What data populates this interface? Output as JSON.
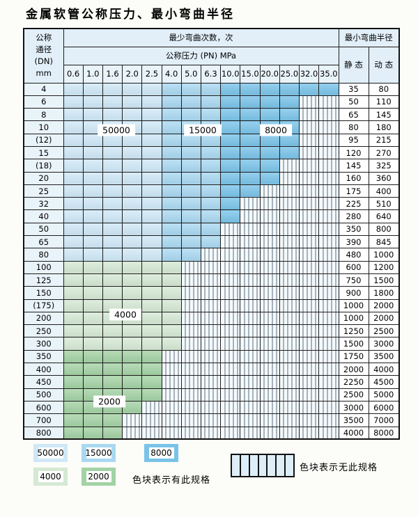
{
  "title": "金属软管公称压力、最小弯曲半径",
  "table": {
    "header": {
      "dn_lines": [
        "公称",
        "通径",
        "(DN)",
        "mm"
      ],
      "bend_times": "最少弯曲次数，次",
      "pressure": "公称压力 (PN) MPa",
      "pressure_values": [
        "0.6",
        "1.0",
        "1.6",
        "2.0",
        "2.5",
        "4.0",
        "5.0",
        "6.3",
        "10.0",
        "15.0",
        "20.0",
        "25.0",
        "32.0",
        "35.0"
      ],
      "radius": "最小弯曲半径",
      "static_label": "静 态",
      "dynamic_label": "动 态"
    },
    "rows": [
      {
        "dn": "4",
        "zone": "blue",
        "max_col": 14,
        "static": "35",
        "dynamic": "80"
      },
      {
        "dn": "6",
        "zone": "blue",
        "max_col": 12,
        "static": "50",
        "dynamic": "110"
      },
      {
        "dn": "8",
        "zone": "blue",
        "max_col": 12,
        "static": "65",
        "dynamic": "145"
      },
      {
        "dn": "10",
        "zone": "blue",
        "max_col": 12,
        "static": "80",
        "dynamic": "180"
      },
      {
        "dn": "(12)",
        "zone": "blue",
        "max_col": 12,
        "static": "95",
        "dynamic": "215"
      },
      {
        "dn": "15",
        "zone": "blue",
        "max_col": 12,
        "static": "120",
        "dynamic": "270"
      },
      {
        "dn": "(18)",
        "zone": "blue",
        "max_col": 11,
        "static": "145",
        "dynamic": "325"
      },
      {
        "dn": "20",
        "zone": "blue",
        "max_col": 11,
        "static": "160",
        "dynamic": "360"
      },
      {
        "dn": "25",
        "zone": "blue",
        "max_col": 10,
        "static": "175",
        "dynamic": "400"
      },
      {
        "dn": "32",
        "zone": "blue",
        "max_col": 9,
        "static": "225",
        "dynamic": "510"
      },
      {
        "dn": "40",
        "zone": "blue",
        "max_col": 9,
        "static": "280",
        "dynamic": "640"
      },
      {
        "dn": "50",
        "zone": "blue",
        "max_col": 8,
        "static": "350",
        "dynamic": "800"
      },
      {
        "dn": "65",
        "zone": "blue",
        "max_col": 8,
        "static": "390",
        "dynamic": "845"
      },
      {
        "dn": "80",
        "zone": "blue",
        "max_col": 7,
        "static": "480",
        "dynamic": "1000"
      },
      {
        "dn": "100",
        "zone": "g4",
        "max_col": 6,
        "static": "600",
        "dynamic": "1200"
      },
      {
        "dn": "125",
        "zone": "g4",
        "max_col": 6,
        "static": "750",
        "dynamic": "1500"
      },
      {
        "dn": "150",
        "zone": "g4",
        "max_col": 6,
        "static": "900",
        "dynamic": "1800"
      },
      {
        "dn": "(175)",
        "zone": "g4",
        "max_col": 6,
        "static": "1000",
        "dynamic": "2000"
      },
      {
        "dn": "200",
        "zone": "g4",
        "max_col": 6,
        "static": "1000",
        "dynamic": "2000"
      },
      {
        "dn": "250",
        "zone": "g4",
        "max_col": 6,
        "static": "1250",
        "dynamic": "2500"
      },
      {
        "dn": "300",
        "zone": "g4",
        "max_col": 6,
        "static": "1500",
        "dynamic": "3000"
      },
      {
        "dn": "350",
        "zone": "g2",
        "max_col": 5,
        "static": "1750",
        "dynamic": "3500"
      },
      {
        "dn": "400",
        "zone": "g2",
        "max_col": 5,
        "static": "2000",
        "dynamic": "4000"
      },
      {
        "dn": "450",
        "zone": "g2",
        "max_col": 5,
        "static": "2250",
        "dynamic": "4500"
      },
      {
        "dn": "500",
        "zone": "g2",
        "max_col": 5,
        "static": "2500",
        "dynamic": "5000"
      },
      {
        "dn": "600",
        "zone": "g2",
        "max_col": 4,
        "static": "3000",
        "dynamic": "6000"
      },
      {
        "dn": "700",
        "zone": "g2",
        "max_col": 3,
        "static": "3500",
        "dynamic": "7000"
      },
      {
        "dn": "800",
        "zone": "g2",
        "max_col": 3,
        "static": "4000",
        "dynamic": "8000"
      }
    ]
  },
  "overlays": [
    {
      "label": "50000"
    },
    {
      "label": "15000"
    },
    {
      "label": "8000"
    },
    {
      "label": "4000"
    },
    {
      "label": "2000"
    }
  ],
  "legend": {
    "swatches": [
      {
        "label": "50000",
        "color": "#cfe8f7"
      },
      {
        "label": "15000",
        "color": "#a9d8f1"
      },
      {
        "label": "8000",
        "color": "#79c3e9"
      },
      {
        "label": "4000",
        "color": "#d5e9d4"
      },
      {
        "label": "2000",
        "color": "#a3d2a4"
      }
    ],
    "has_spec_text": "色块表示有此规格",
    "no_spec_text": "色块表示无此规格"
  },
  "colors": {
    "bend_50000": "#cfe8f7",
    "bend_15000": "#a9d8f1",
    "bend_8000": "#79c3e9",
    "bend_4000": "#d5e9d4",
    "bend_2000": "#a3d2a4",
    "header_bg": "#e2eff9",
    "grid_line": "#1c1c1c"
  }
}
